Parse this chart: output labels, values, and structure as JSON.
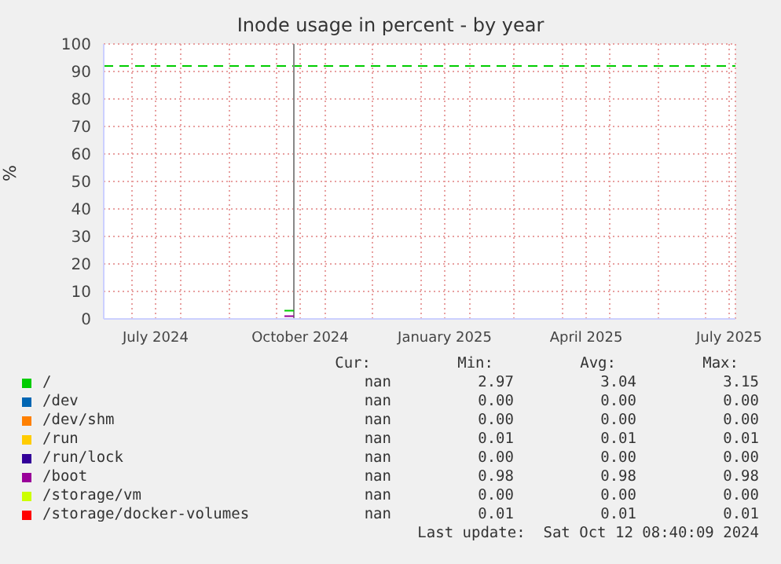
{
  "chart_data": {
    "type": "line",
    "title": "Inode usage in percent - by year",
    "ylabel": "%",
    "x": [
      "2024-10-06",
      "2024-10-12"
    ],
    "xlim": [
      "2024-06-13",
      "2025-07-20"
    ],
    "xticks": [
      {
        "value": "2024-07-01",
        "label": null
      },
      {
        "value": "2024-07-16",
        "label": "July 2024"
      },
      {
        "value": "2024-08-01",
        "label": null
      },
      {
        "value": "2024-09-01",
        "label": null
      },
      {
        "value": "2024-10-01",
        "label": null
      },
      {
        "value": "2024-10-16",
        "label": "October 2024"
      },
      {
        "value": "2024-11-01",
        "label": null
      },
      {
        "value": "2024-12-01",
        "label": null
      },
      {
        "value": "2025-01-01",
        "label": null
      },
      {
        "value": "2025-01-16",
        "label": "January 2025"
      },
      {
        "value": "2025-02-01",
        "label": null
      },
      {
        "value": "2025-03-01",
        "label": null
      },
      {
        "value": "2025-04-01",
        "label": null
      },
      {
        "value": "2025-04-16",
        "label": "April 2025"
      },
      {
        "value": "2025-05-01",
        "label": null
      },
      {
        "value": "2025-06-01",
        "label": null
      },
      {
        "value": "2025-07-01",
        "label": null
      },
      {
        "value": "2025-07-16",
        "label": "July 2025"
      }
    ],
    "ylim": [
      0,
      100
    ],
    "yticks": [
      0,
      10,
      20,
      30,
      40,
      50,
      60,
      70,
      80,
      90,
      100
    ],
    "grid": true,
    "legend": "bottom",
    "ref_lines": [
      {
        "axis": "y",
        "value": 92,
        "color": "#00cc00",
        "line_style": "dashed"
      },
      {
        "axis": "x",
        "value": "2024-10-12",
        "color": "#888888",
        "line_style": "solid"
      }
    ],
    "series": [
      {
        "name": "/",
        "color": "#00cc00",
        "values": [
          3,
          3
        ]
      },
      {
        "name": "/dev",
        "color": "#0066b3",
        "values": [
          null,
          null
        ]
      },
      {
        "name": "/dev/shm",
        "color": "#ff8000",
        "values": [
          null,
          null
        ]
      },
      {
        "name": "/run",
        "color": "#ffcc00",
        "values": [
          null,
          null
        ]
      },
      {
        "name": "/run/lock",
        "color": "#330099",
        "values": [
          null,
          null
        ]
      },
      {
        "name": "/boot",
        "color": "#990099",
        "values": [
          1,
          1
        ]
      },
      {
        "name": "/storage/vm",
        "color": "#ccff00",
        "values": [
          null,
          null
        ]
      },
      {
        "name": "/storage/docker-volumes",
        "color": "#ff0000",
        "values": [
          null,
          null
        ]
      }
    ],
    "annotations": [
      "Cur:",
      "Min:",
      "Avg:",
      "Max:",
      "nan",
      "2.97",
      "3.04",
      "3.15",
      "nan",
      "0.00",
      "0.00",
      "0.00",
      "nan",
      "0.00",
      "0.00",
      "0.00",
      "nan",
      "0.01",
      "0.01",
      "0.01",
      "nan",
      "0.00",
      "0.00",
      "0.00",
      "nan",
      "0.98",
      "0.98",
      "0.98",
      "nan",
      "0.00",
      "0.00",
      "0.00",
      "nan",
      "0.01",
      "0.01",
      "0.01",
      "Last update:  Sat Oct 12 08:40:09 2024"
    ]
  }
}
